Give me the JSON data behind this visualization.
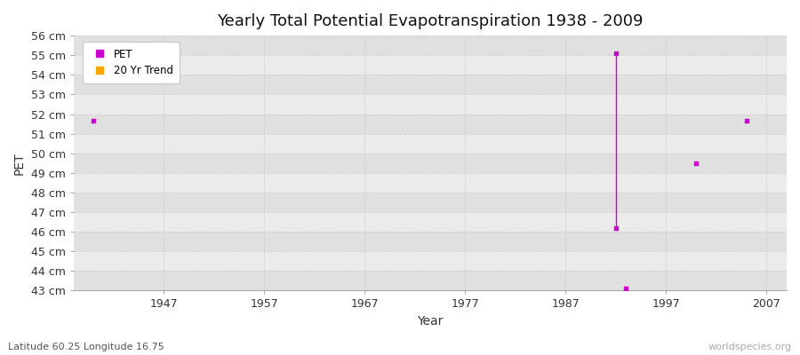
{
  "title": "Yearly Total Potential Evapotranspiration 1938 - 2009",
  "xlabel": "Year",
  "ylabel": "PET",
  "subtitle": "Latitude 60.25 Longitude 16.75",
  "watermark": "worldspecies.org",
  "ylim": [
    43,
    56
  ],
  "xlim": [
    1938,
    2009
  ],
  "ytick_labels": [
    "43 cm",
    "44 cm",
    "45 cm",
    "46 cm",
    "47 cm",
    "48 cm",
    "49 cm",
    "50 cm",
    "51 cm",
    "52 cm",
    "53 cm",
    "54 cm",
    "55 cm",
    "56 cm"
  ],
  "ytick_values": [
    43,
    44,
    45,
    46,
    47,
    48,
    49,
    50,
    51,
    52,
    53,
    54,
    55,
    56
  ],
  "xtick_values": [
    1947,
    1957,
    1967,
    1977,
    1987,
    1997,
    2007
  ],
  "pet_points": [
    [
      1940,
      51.65
    ],
    [
      1992,
      55.1
    ],
    [
      1992,
      46.2
    ],
    [
      1993,
      43.1
    ],
    [
      2000,
      49.5
    ],
    [
      2005,
      51.65
    ]
  ],
  "trend_line": [
    [
      1992,
      55.1
    ],
    [
      1992,
      46.2
    ]
  ],
  "pet_color": "#CC00CC",
  "trend_color": "#CC00CC",
  "bg_color": "#ffffff",
  "plot_bg_light": "#ebebeb",
  "plot_bg_dark": "#e0e0e0",
  "grid_color": "#d0d0d0",
  "legend_pet_color": "#CC00CC",
  "legend_trend_color": "#FFA500"
}
